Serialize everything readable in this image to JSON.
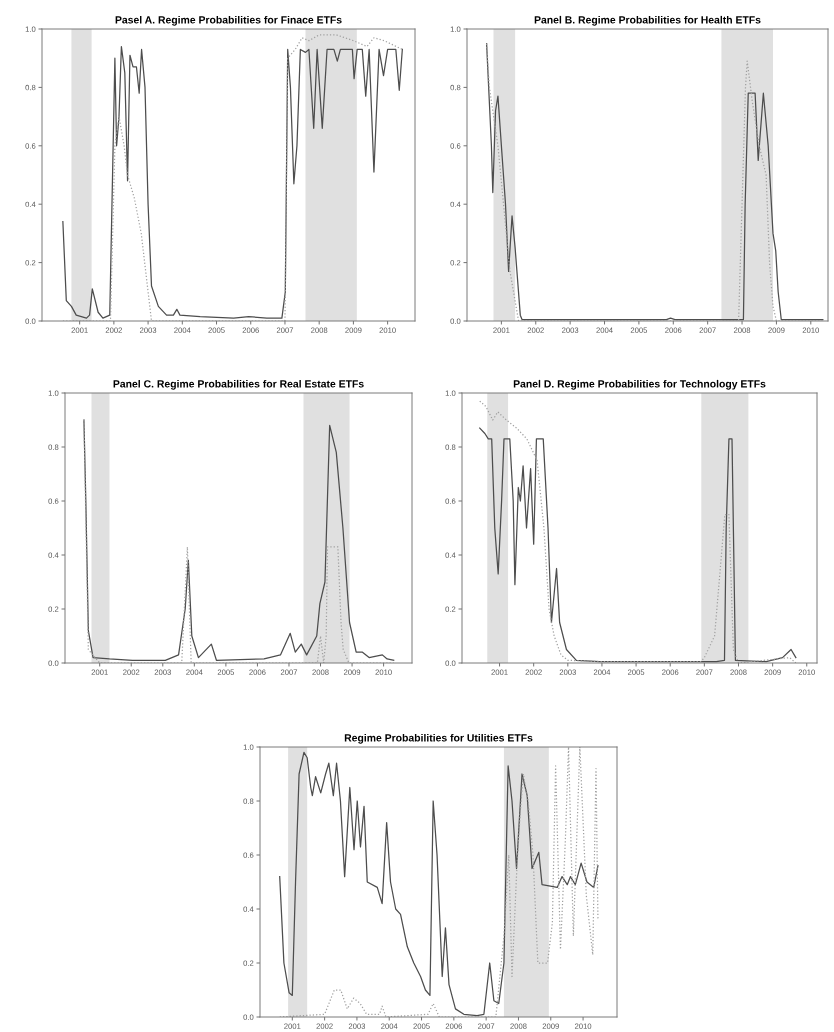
{
  "chart_data": [
    {
      "type": "line",
      "title": "Pasel A. Regime Probabilities for Finace ETFs",
      "xlim": [
        1999.9,
        2010.8
      ],
      "ylim": [
        0,
        1.0
      ],
      "xticks": [
        2001,
        2002,
        2003,
        2004,
        2005,
        2006,
        2007,
        2008,
        2009,
        2010
      ],
      "yticks": [
        {
          "value": 0,
          "label": "0.0"
        },
        {
          "value": 0.2,
          "label": "0.2"
        },
        {
          "value": 0.4,
          "label": "0.4"
        },
        {
          "value": 0.6,
          "label": "0.6"
        },
        {
          "value": 0.8,
          "label": "0.8"
        },
        {
          "value": 1.0,
          "label": "1.0"
        }
      ],
      "bands": [
        {
          "axis": "x",
          "from": 2000.76,
          "to": 2001.35,
          "color": "#e0e0e0"
        },
        {
          "axis": "x",
          "from": 2007.6,
          "to": 2009.1,
          "color": "#e0e0e0"
        }
      ],
      "series": [
        {
          "color": "#4d4d4d",
          "line_style": "solid",
          "x": [
            2000.51,
            2000.61,
            2000.76,
            2000.9,
            2001.2,
            2001.29,
            2001.37,
            2001.54,
            2001.68,
            2001.88,
            2002.03,
            2002.08,
            2002.15,
            2002.22,
            2002.32,
            2002.4,
            2002.47,
            2002.56,
            2002.66,
            2002.74,
            2002.81,
            2002.91,
            2003.0,
            2003.1,
            2003.3,
            2003.54,
            2003.74,
            2003.84,
            2003.93,
            2004.52,
            2005.5,
            2005.94,
            2006.47,
            2006.91,
            2007.01,
            2007.08,
            2007.16,
            2007.26,
            2007.35,
            2007.45,
            2007.6,
            2007.7,
            2007.84,
            2007.94,
            2008.09,
            2008.23,
            2008.43,
            2008.53,
            2008.62,
            2008.97,
            2009.02,
            2009.11,
            2009.26,
            2009.36,
            2009.46,
            2009.6,
            2009.75,
            2009.88,
            2010.0,
            2010.24,
            2010.34,
            2010.43
          ],
          "values": [
            0.34,
            0.07,
            0.05,
            0.02,
            0.01,
            0.02,
            0.11,
            0.03,
            0.01,
            0.02,
            0.9,
            0.6,
            0.7,
            0.94,
            0.85,
            0.48,
            0.91,
            0.87,
            0.87,
            0.78,
            0.93,
            0.8,
            0.4,
            0.12,
            0.05,
            0.02,
            0.02,
            0.04,
            0.02,
            0.015,
            0.01,
            0.015,
            0.01,
            0.01,
            0.1,
            0.93,
            0.8,
            0.47,
            0.6,
            0.93,
            0.92,
            0.93,
            0.66,
            0.93,
            0.66,
            0.93,
            0.93,
            0.89,
            0.93,
            0.93,
            0.83,
            0.93,
            0.93,
            0.77,
            0.93,
            0.51,
            0.93,
            0.84,
            0.93,
            0.93,
            0.79,
            0.93
          ]
        },
        {
          "color": "#a0a0a0",
          "line_style": "dotted",
          "x": [
            2000.51,
            2001.9,
            2002.03,
            2002.15,
            2002.3,
            2002.4,
            2002.6,
            2002.8,
            2003.0,
            2003.1,
            2007.0,
            2007.08,
            2007.3,
            2007.5,
            2007.7,
            2008.0,
            2008.5,
            2009.0,
            2009.2,
            2009.4,
            2009.6,
            2009.9,
            2010.43
          ],
          "values": [
            0.0,
            0.0,
            0.6,
            0.7,
            0.6,
            0.5,
            0.42,
            0.3,
            0.1,
            0.0,
            0.0,
            0.9,
            0.93,
            0.97,
            0.96,
            0.98,
            0.98,
            0.96,
            0.95,
            0.94,
            0.97,
            0.96,
            0.93
          ]
        }
      ]
    },
    {
      "type": "line",
      "title": "Panel B. Regime Probabilities for Health ETFs",
      "xlim": [
        2000.0,
        2010.5
      ],
      "ylim": [
        0,
        1.0
      ],
      "xticks": [
        2001,
        2002,
        2003,
        2004,
        2005,
        2006,
        2007,
        2008,
        2009,
        2010
      ],
      "yticks": [
        {
          "value": 0,
          "label": "0.0"
        },
        {
          "value": 0.2,
          "label": "0.2"
        },
        {
          "value": 0.4,
          "label": "0.4"
        },
        {
          "value": 0.6,
          "label": "0.6"
        },
        {
          "value": 0.8,
          "label": "0.8"
        },
        {
          "value": 1.0,
          "label": "1.0"
        }
      ],
      "bands": [
        {
          "axis": "x",
          "from": 2000.77,
          "to": 2001.4,
          "color": "#e0e0e0"
        },
        {
          "axis": "x",
          "from": 2007.4,
          "to": 2008.9,
          "color": "#e0e0e0"
        }
      ],
      "series": [
        {
          "color": "#4d4d4d",
          "line_style": "solid",
          "x": [
            2000.57,
            2000.71,
            2000.75,
            2000.83,
            2000.9,
            2001.0,
            2001.12,
            2001.21,
            2001.31,
            2001.4,
            2001.55,
            2001.6,
            2005.8,
            2005.92,
            2006.05,
            2008.04,
            2008.09,
            2008.18,
            2008.38,
            2008.47,
            2008.62,
            2008.76,
            2008.9,
            2008.98,
            2009.05,
            2009.14,
            2010.35
          ],
          "values": [
            0.95,
            0.6,
            0.44,
            0.72,
            0.77,
            0.6,
            0.4,
            0.17,
            0.36,
            0.25,
            0.02,
            0.005,
            0.005,
            0.01,
            0.005,
            0.005,
            0.4,
            0.78,
            0.78,
            0.55,
            0.78,
            0.6,
            0.3,
            0.24,
            0.1,
            0.005,
            0.005
          ]
        },
        {
          "color": "#a0a0a0",
          "line_style": "dotted",
          "x": [
            2000.57,
            2000.65,
            2000.9,
            2001.25,
            2001.5,
            2007.9,
            2008.0,
            2008.1,
            2008.15,
            2008.3,
            2008.5,
            2008.7,
            2008.8,
            2008.9,
            2009.0,
            2010.35
          ],
          "values": [
            0.95,
            0.8,
            0.6,
            0.17,
            0.0,
            0.0,
            0.4,
            0.8,
            0.89,
            0.75,
            0.6,
            0.5,
            0.2,
            0.05,
            0.0,
            0.0
          ]
        }
      ]
    },
    {
      "type": "line",
      "title": "Panel C. Regime Probabilities for Real Estate ETFs",
      "xlim": [
        1999.9,
        2010.9
      ],
      "ylim": [
        0,
        1.0
      ],
      "xticks": [
        2001,
        2002,
        2003,
        2004,
        2005,
        2006,
        2007,
        2008,
        2009,
        2010
      ],
      "yticks": [
        {
          "value": 0,
          "label": "0.0"
        },
        {
          "value": 0.2,
          "label": "0.2"
        },
        {
          "value": 0.4,
          "label": "0.4"
        },
        {
          "value": 0.6,
          "label": "0.6"
        },
        {
          "value": 0.8,
          "label": "0.8"
        },
        {
          "value": 1.0,
          "label": "1.0"
        }
      ],
      "bands": [
        {
          "axis": "x",
          "from": 2000.74,
          "to": 2001.31,
          "color": "#e0e0e0"
        },
        {
          "axis": "x",
          "from": 2007.46,
          "to": 2008.92,
          "color": "#e0e0e0"
        }
      ],
      "series": [
        {
          "color": "#4d4d4d",
          "line_style": "solid",
          "x": [
            2000.5,
            2000.56,
            2000.64,
            2000.79,
            2001.31,
            2002.04,
            2003.08,
            2003.5,
            2003.71,
            2003.81,
            2003.92,
            2004.13,
            2004.54,
            2004.7,
            2006.21,
            2006.73,
            2007.04,
            2007.2,
            2007.39,
            2007.56,
            2007.88,
            2007.98,
            2008.14,
            2008.29,
            2008.5,
            2008.71,
            2008.92,
            2009.13,
            2009.33,
            2009.54,
            2009.96,
            2010.11,
            2010.32
          ],
          "values": [
            0.9,
            0.6,
            0.12,
            0.02,
            0.015,
            0.01,
            0.01,
            0.03,
            0.2,
            0.38,
            0.1,
            0.02,
            0.07,
            0.01,
            0.015,
            0.03,
            0.11,
            0.04,
            0.07,
            0.03,
            0.1,
            0.22,
            0.3,
            0.88,
            0.78,
            0.5,
            0.15,
            0.04,
            0.04,
            0.02,
            0.03,
            0.015,
            0.01
          ]
        },
        {
          "color": "#a0a0a0",
          "line_style": "dotted",
          "x": [
            2000.5,
            2000.64,
            2001.0,
            2003.6,
            2003.78,
            2003.9,
            2007.9,
            2008.0,
            2008.1,
            2008.18,
            2008.22,
            2008.55,
            2008.65,
            2008.72,
            2008.9,
            2010.32
          ],
          "values": [
            0.9,
            0.05,
            0.0,
            0.0,
            0.43,
            0.0,
            0.0,
            0.1,
            0.0,
            0.1,
            0.43,
            0.43,
            0.15,
            0.05,
            0.0,
            0.0
          ]
        }
      ]
    },
    {
      "type": "line",
      "title": "Panel D. Regime Probabilities for Technology ETFs",
      "xlim": [
        1999.9,
        2010.3
      ],
      "ylim": [
        0,
        1.0
      ],
      "xticks": [
        2001,
        2002,
        2003,
        2004,
        2005,
        2006,
        2007,
        2008,
        2009,
        2010
      ],
      "yticks": [
        {
          "value": 0,
          "label": "0.0"
        },
        {
          "value": 0.2,
          "label": "0.2"
        },
        {
          "value": 0.4,
          "label": "0.4"
        },
        {
          "value": 0.6,
          "label": "0.6"
        },
        {
          "value": 0.8,
          "label": "0.8"
        },
        {
          "value": 1.0,
          "label": "1.0"
        }
      ],
      "bands": [
        {
          "axis": "x",
          "from": 2000.64,
          "to": 2001.25,
          "color": "#e0e0e0"
        },
        {
          "axis": "x",
          "from": 2006.91,
          "to": 2008.29,
          "color": "#e0e0e0"
        }
      ],
      "series": [
        {
          "color": "#4d4d4d",
          "line_style": "solid",
          "x": [
            2000.42,
            2000.57,
            2000.67,
            2000.77,
            2000.86,
            2000.96,
            2001.06,
            2001.13,
            2001.3,
            2001.4,
            2001.45,
            2001.55,
            2001.61,
            2001.69,
            2001.79,
            2001.91,
            2002.0,
            2002.08,
            2002.28,
            2002.42,
            2002.52,
            2002.67,
            2002.76,
            2002.96,
            2003.25,
            2003.93,
            2007.35,
            2007.59,
            2007.64,
            2007.72,
            2007.81,
            2007.91,
            2008.81,
            2009.29,
            2009.54,
            2009.68
          ],
          "values": [
            0.87,
            0.85,
            0.83,
            0.83,
            0.5,
            0.33,
            0.6,
            0.83,
            0.83,
            0.6,
            0.29,
            0.65,
            0.6,
            0.73,
            0.5,
            0.72,
            0.44,
            0.83,
            0.83,
            0.5,
            0.15,
            0.35,
            0.15,
            0.05,
            0.01,
            0.005,
            0.005,
            0.01,
            0.5,
            0.83,
            0.83,
            0.01,
            0.005,
            0.02,
            0.05,
            0.02
          ]
        },
        {
          "color": "#a0a0a0",
          "line_style": "dotted",
          "x": [
            2000.42,
            2000.6,
            2000.8,
            2000.95,
            2001.2,
            2001.5,
            2001.8,
            2002.1,
            2002.3,
            2002.45,
            2002.6,
            2002.8,
            2003.0,
            2004.0,
            2006.9,
            2007.0,
            2007.3,
            2007.5,
            2007.6,
            2007.72,
            2007.85,
            2008.0,
            2009.5,
            2009.68
          ],
          "values": [
            0.97,
            0.95,
            0.9,
            0.93,
            0.9,
            0.87,
            0.83,
            0.75,
            0.5,
            0.2,
            0.1,
            0.03,
            0.01,
            0.005,
            0.005,
            0.02,
            0.1,
            0.4,
            0.55,
            0.55,
            0.05,
            0.0,
            0.02,
            0.0
          ]
        }
      ]
    },
    {
      "type": "line",
      "title": "Regime Probabilities for Utilities ETFs",
      "xlim": [
        2000.0,
        2011.05
      ],
      "ylim": [
        0,
        1.0
      ],
      "xticks": [
        2001,
        2002,
        2003,
        2004,
        2005,
        2006,
        2007,
        2008,
        2009,
        2010
      ],
      "yticks": [
        {
          "value": 0,
          "label": "0.0"
        },
        {
          "value": 0.2,
          "label": "0.2"
        },
        {
          "value": 0.4,
          "label": "0.4"
        },
        {
          "value": 0.6,
          "label": "0.6"
        },
        {
          "value": 0.8,
          "label": "0.8"
        },
        {
          "value": 1.0,
          "label": "1.0"
        }
      ],
      "bands": [
        {
          "axis": "x",
          "from": 2000.87,
          "to": 2001.46,
          "color": "#e0e0e0"
        },
        {
          "axis": "x",
          "from": 2007.55,
          "to": 2008.94,
          "color": "#e0e0e0"
        }
      ],
      "series": [
        {
          "color": "#4d4d4d",
          "line_style": "solid",
          "x": [
            2000.61,
            2000.74,
            2000.9,
            2001.0,
            2001.1,
            2001.21,
            2001.36,
            2001.46,
            2001.57,
            2001.62,
            2001.72,
            2001.88,
            2002.03,
            2002.13,
            2002.27,
            2002.37,
            2002.49,
            2002.62,
            2002.78,
            2002.91,
            2003.01,
            2003.11,
            2003.22,
            2003.32,
            2003.63,
            2003.78,
            2003.92,
            2004.04,
            2004.2,
            2004.35,
            2004.56,
            2004.76,
            2004.97,
            2005.12,
            2005.26,
            2005.36,
            2005.48,
            2005.64,
            2005.74,
            2005.85,
            2006.05,
            2006.31,
            2006.72,
            2006.93,
            2007.11,
            2007.24,
            2007.39,
            2007.55,
            2007.68,
            2007.8,
            2007.94,
            2008.11,
            2008.27,
            2008.42,
            2008.63,
            2008.73,
            2009.2,
            2009.35,
            2009.51,
            2009.61,
            2009.76,
            2009.94,
            2010.12,
            2010.33,
            2010.46
          ],
          "values": [
            0.52,
            0.2,
            0.09,
            0.08,
            0.5,
            0.9,
            0.98,
            0.96,
            0.85,
            0.82,
            0.89,
            0.83,
            0.9,
            0.94,
            0.82,
            0.94,
            0.8,
            0.52,
            0.85,
            0.62,
            0.8,
            0.63,
            0.78,
            0.5,
            0.48,
            0.42,
            0.72,
            0.5,
            0.4,
            0.38,
            0.26,
            0.2,
            0.15,
            0.1,
            0.08,
            0.8,
            0.6,
            0.15,
            0.33,
            0.12,
            0.03,
            0.01,
            0.005,
            0.01,
            0.2,
            0.06,
            0.05,
            0.2,
            0.93,
            0.8,
            0.55,
            0.9,
            0.82,
            0.55,
            0.61,
            0.49,
            0.48,
            0.52,
            0.49,
            0.52,
            0.49,
            0.57,
            0.5,
            0.48,
            0.56
          ]
        },
        {
          "color": "#a0a0a0",
          "line_style": "dotted",
          "x": [
            2000.61,
            2002.0,
            2002.3,
            2002.5,
            2002.7,
            2002.9,
            2003.1,
            2003.3,
            2003.7,
            2003.78,
            2003.9,
            2005.2,
            2005.36,
            2005.55,
            2007.3,
            2007.55,
            2007.7,
            2007.8,
            2007.95,
            2008.05,
            2008.15,
            2008.3,
            2008.45,
            2008.6,
            2008.9,
            2009.05,
            2009.15,
            2009.3,
            2009.45,
            2009.55,
            2009.7,
            2009.9,
            2010.1,
            2010.3,
            2010.4,
            2010.46
          ],
          "values": [
            0.0,
            0.01,
            0.1,
            0.1,
            0.03,
            0.07,
            0.05,
            0.01,
            0.01,
            0.04,
            0.0,
            0.01,
            0.05,
            0.0,
            0.0,
            0.3,
            0.6,
            0.15,
            0.55,
            0.75,
            0.9,
            0.8,
            0.6,
            0.2,
            0.2,
            0.35,
            0.93,
            0.25,
            0.65,
            1.0,
            0.3,
            1.0,
            0.45,
            0.23,
            0.92,
            0.36
          ]
        }
      ]
    }
  ]
}
